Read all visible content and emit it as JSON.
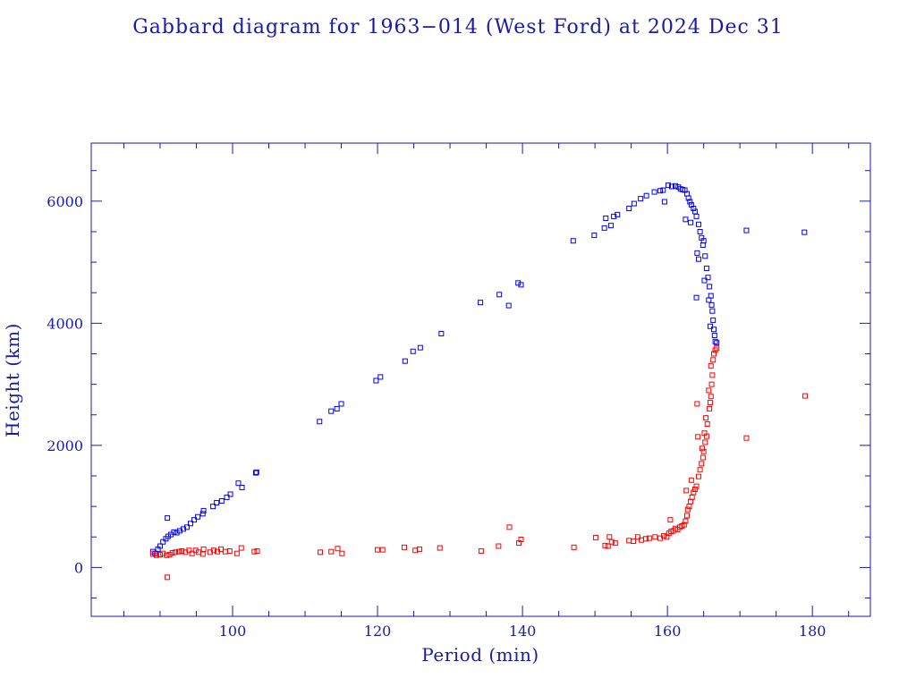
{
  "chart_data": {
    "type": "scatter",
    "title": "Gabbard diagram for 1963−014 (West Ford) at 2024 Dec 31",
    "xlabel": "Period (min)",
    "ylabel": "Height (km)",
    "xlim": [
      80.5,
      188
    ],
    "ylim": [
      -800,
      6950
    ],
    "x_major_ticks": [
      100,
      120,
      140,
      160,
      180
    ],
    "x_minor_step": 5,
    "y_major_ticks": [
      0,
      2000,
      4000,
      6000
    ],
    "y_minor_step": 500,
    "marker": "open-square",
    "grid": false,
    "legend": "none",
    "series": [
      {
        "color": "#0000ff",
        "points": [
          [
            89.0,
            260
          ],
          [
            89.3,
            230
          ],
          [
            89.7,
            300
          ],
          [
            90.0,
            350
          ],
          [
            90.4,
            420
          ],
          [
            90.8,
            470
          ],
          [
            91.1,
            510
          ],
          [
            91.5,
            540
          ],
          [
            91.9,
            580
          ],
          [
            92.3,
            570
          ],
          [
            92.7,
            600
          ],
          [
            93.2,
            630
          ],
          [
            93.7,
            660
          ],
          [
            94.2,
            720
          ],
          [
            94.7,
            780
          ],
          [
            95.2,
            830
          ],
          [
            95.9,
            880
          ],
          [
            96.0,
            930
          ],
          [
            97.3,
            1000
          ],
          [
            97.8,
            1060
          ],
          [
            98.5,
            1090
          ],
          [
            99.2,
            1150
          ],
          [
            99.7,
            1200
          ],
          [
            100.8,
            1380
          ],
          [
            101.3,
            1310
          ],
          [
            91.0,
            810
          ],
          [
            103.2,
            1550
          ],
          [
            103.3,
            1560
          ],
          [
            112.0,
            2390
          ],
          [
            113.6,
            2560
          ],
          [
            114.4,
            2600
          ],
          [
            115.0,
            2680
          ],
          [
            119.8,
            3060
          ],
          [
            120.4,
            3120
          ],
          [
            123.8,
            3380
          ],
          [
            124.9,
            3540
          ],
          [
            125.9,
            3600
          ],
          [
            128.8,
            3830
          ],
          [
            134.2,
            4340
          ],
          [
            136.8,
            4470
          ],
          [
            138.1,
            4290
          ],
          [
            139.4,
            4660
          ],
          [
            139.8,
            4630
          ],
          [
            147.0,
            5350
          ],
          [
            149.9,
            5440
          ],
          [
            151.3,
            5560
          ],
          [
            151.5,
            5720
          ],
          [
            152.2,
            5600
          ],
          [
            152.6,
            5750
          ],
          [
            153.1,
            5780
          ],
          [
            154.7,
            5880
          ],
          [
            155.4,
            5960
          ],
          [
            156.3,
            6040
          ],
          [
            157.1,
            6090
          ],
          [
            158.2,
            6150
          ],
          [
            159.0,
            6170
          ],
          [
            159.4,
            6180
          ],
          [
            159.6,
            5990
          ],
          [
            160.1,
            6260
          ],
          [
            160.6,
            6240
          ],
          [
            161.1,
            6250
          ],
          [
            161.5,
            6230
          ],
          [
            161.8,
            6200
          ],
          [
            162.1,
            6190
          ],
          [
            162.4,
            6180
          ],
          [
            162.7,
            6120
          ],
          [
            162.9,
            6050
          ],
          [
            163.1,
            5990
          ],
          [
            163.3,
            5940
          ],
          [
            163.6,
            5880
          ],
          [
            163.8,
            5830
          ],
          [
            164.0,
            5750
          ],
          [
            162.5,
            5700
          ],
          [
            163.2,
            5650
          ],
          [
            164.3,
            5620
          ],
          [
            164.5,
            5500
          ],
          [
            164.7,
            5400
          ],
          [
            164.9,
            5280
          ],
          [
            165.0,
            5350
          ],
          [
            165.2,
            5100
          ],
          [
            164.1,
            5150
          ],
          [
            164.3,
            5050
          ],
          [
            165.4,
            4900
          ],
          [
            165.6,
            4750
          ],
          [
            165.1,
            4700
          ],
          [
            165.8,
            4600
          ],
          [
            166.0,
            4450
          ],
          [
            165.7,
            4380
          ],
          [
            166.1,
            4300
          ],
          [
            164.0,
            4420
          ],
          [
            166.2,
            4200
          ],
          [
            166.3,
            4050
          ],
          [
            165.9,
            3950
          ],
          [
            166.4,
            3900
          ],
          [
            166.5,
            3800
          ],
          [
            166.6,
            3700
          ],
          [
            166.8,
            3680
          ],
          [
            170.9,
            5520
          ],
          [
            178.9,
            5490
          ]
        ]
      },
      {
        "color": "#ff0000",
        "points": [
          [
            89.0,
            220
          ],
          [
            89.5,
            200
          ],
          [
            90.0,
            210
          ],
          [
            90.4,
            230
          ],
          [
            90.9,
            200
          ],
          [
            91.3,
            210
          ],
          [
            91.7,
            240
          ],
          [
            92.1,
            250
          ],
          [
            92.6,
            260
          ],
          [
            93.0,
            270
          ],
          [
            93.5,
            250
          ],
          [
            94.0,
            280
          ],
          [
            94.4,
            230
          ],
          [
            94.9,
            280
          ],
          [
            95.3,
            250
          ],
          [
            96.0,
            300
          ],
          [
            95.9,
            220
          ],
          [
            96.9,
            250
          ],
          [
            97.4,
            280
          ],
          [
            97.9,
            260
          ],
          [
            98.4,
            300
          ],
          [
            99.0,
            260
          ],
          [
            99.6,
            270
          ],
          [
            100.6,
            230
          ],
          [
            101.2,
            320
          ],
          [
            103.0,
            260
          ],
          [
            103.4,
            270
          ],
          [
            91.0,
            -160
          ],
          [
            112.1,
            250
          ],
          [
            113.6,
            260
          ],
          [
            114.5,
            310
          ],
          [
            115.1,
            230
          ],
          [
            120.0,
            290
          ],
          [
            120.7,
            290
          ],
          [
            123.7,
            330
          ],
          [
            125.2,
            280
          ],
          [
            125.8,
            300
          ],
          [
            128.6,
            320
          ],
          [
            134.3,
            270
          ],
          [
            136.7,
            350
          ],
          [
            138.2,
            660
          ],
          [
            139.5,
            400
          ],
          [
            139.8,
            460
          ],
          [
            147.1,
            330
          ],
          [
            150.1,
            490
          ],
          [
            151.4,
            360
          ],
          [
            151.8,
            350
          ],
          [
            152.0,
            500
          ],
          [
            152.3,
            420
          ],
          [
            152.8,
            400
          ],
          [
            154.7,
            440
          ],
          [
            155.3,
            430
          ],
          [
            155.9,
            500
          ],
          [
            156.4,
            450
          ],
          [
            157.0,
            470
          ],
          [
            157.5,
            480
          ],
          [
            158.3,
            500
          ],
          [
            159.0,
            480
          ],
          [
            159.5,
            520
          ],
          [
            159.9,
            500
          ],
          [
            160.2,
            560
          ],
          [
            160.5,
            590
          ],
          [
            160.8,
            600
          ],
          [
            161.1,
            640
          ],
          [
            161.4,
            620
          ],
          [
            161.7,
            660
          ],
          [
            162.0,
            680
          ],
          [
            162.3,
            700
          ],
          [
            162.5,
            760
          ],
          [
            162.7,
            850
          ],
          [
            162.8,
            950
          ],
          [
            163.0,
            1000
          ],
          [
            163.2,
            1080
          ],
          [
            163.4,
            1150
          ],
          [
            163.6,
            1230
          ],
          [
            163.8,
            1280
          ],
          [
            164.0,
            1330
          ],
          [
            162.6,
            1260
          ],
          [
            163.3,
            1430
          ],
          [
            164.3,
            1490
          ],
          [
            164.5,
            1600
          ],
          [
            164.7,
            1700
          ],
          [
            164.9,
            1800
          ],
          [
            165.0,
            1900
          ],
          [
            164.8,
            1950
          ],
          [
            165.2,
            2050
          ],
          [
            165.4,
            2150
          ],
          [
            164.2,
            2140
          ],
          [
            165.1,
            2200
          ],
          [
            165.5,
            2350
          ],
          [
            165.3,
            2450
          ],
          [
            165.8,
            2600
          ],
          [
            165.9,
            2700
          ],
          [
            164.1,
            2680
          ],
          [
            166.0,
            2800
          ],
          [
            165.7,
            2900
          ],
          [
            166.1,
            3000
          ],
          [
            166.2,
            3150
          ],
          [
            166.0,
            3300
          ],
          [
            166.3,
            3400
          ],
          [
            166.4,
            3500
          ],
          [
            166.6,
            3560
          ],
          [
            166.8,
            3590
          ],
          [
            160.4,
            780
          ],
          [
            170.9,
            2120
          ],
          [
            179.0,
            2810
          ]
        ]
      }
    ]
  }
}
